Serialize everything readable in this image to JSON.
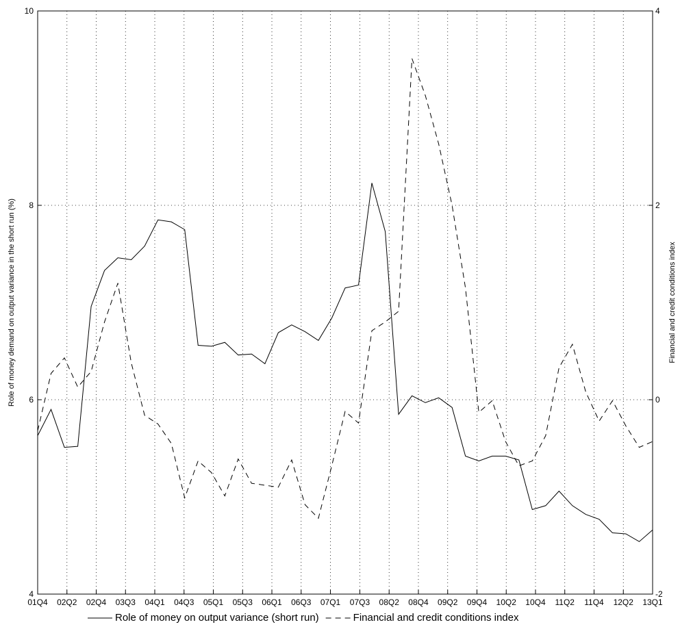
{
  "chart_data": {
    "type": "line",
    "y_label": "Role of money demand on output variance in the short run (%)",
    "y2_label": "Financial and credit conditions index",
    "x": [
      0,
      1,
      2,
      3,
      4,
      5,
      6,
      7,
      8,
      9,
      10,
      11,
      12,
      13,
      14,
      15,
      16,
      17,
      18,
      19,
      20,
      21,
      22,
      23,
      24,
      25,
      26,
      27,
      28,
      29,
      30,
      31,
      32,
      33,
      34,
      35,
      36,
      37,
      38,
      39,
      40,
      41,
      42,
      43,
      44,
      45,
      46
    ],
    "xlim": [
      0,
      46
    ],
    "xticks": [
      {
        "value": 0,
        "label": "01Q4"
      },
      {
        "value": 2.19,
        "label": "02Q2"
      },
      {
        "value": 4.38,
        "label": "02Q4"
      },
      {
        "value": 6.57,
        "label": "03Q3"
      },
      {
        "value": 8.76,
        "label": "04Q1"
      },
      {
        "value": 10.95,
        "label": "04Q3"
      },
      {
        "value": 13.14,
        "label": "05Q1"
      },
      {
        "value": 15.33,
        "label": "05Q3"
      },
      {
        "value": 17.52,
        "label": "06Q1"
      },
      {
        "value": 19.71,
        "label": "06Q3"
      },
      {
        "value": 21.9,
        "label": "07Q1"
      },
      {
        "value": 24.1,
        "label": "07Q3"
      },
      {
        "value": 26.29,
        "label": "08Q2"
      },
      {
        "value": 28.48,
        "label": "08Q4"
      },
      {
        "value": 30.67,
        "label": "09Q2"
      },
      {
        "value": 32.86,
        "label": "09Q4"
      },
      {
        "value": 35.05,
        "label": "10Q2"
      },
      {
        "value": 37.24,
        "label": "10Q4"
      },
      {
        "value": 39.43,
        "label": "11Q2"
      },
      {
        "value": 41.62,
        "label": "11Q4"
      },
      {
        "value": 43.81,
        "label": "12Q2"
      },
      {
        "value": 46,
        "label": "13Q1"
      }
    ],
    "ylim": [
      4,
      10
    ],
    "yticks": [
      4,
      6,
      8,
      10
    ],
    "y2lim": [
      -2,
      4
    ],
    "y2ticks": [
      -2,
      0,
      2,
      4
    ],
    "grid": true,
    "legend": "bottom",
    "series": [
      {
        "name": "Role of money on output variance (short run)",
        "color": "#000000",
        "dash": false,
        "values": [
          5.63,
          5.9,
          5.51,
          5.52,
          6.96,
          7.33,
          7.46,
          7.44,
          7.58,
          7.85,
          7.83,
          7.75,
          6.56,
          6.55,
          6.59,
          6.46,
          6.47,
          6.37,
          6.69,
          6.77,
          6.7,
          6.61,
          6.84,
          7.15,
          7.18,
          8.23,
          7.73,
          5.85,
          6.04,
          5.97,
          6.02,
          5.92,
          5.42,
          5.37,
          5.42,
          5.42,
          5.38,
          4.87,
          4.91,
          5.06,
          4.91,
          4.82,
          4.77,
          4.63,
          4.62,
          4.54,
          4.66
        ]
      },
      {
        "name": "Financial and credit conditions index",
        "color": "#000000",
        "dash": true,
        "axis": "y2",
        "values": [
          -0.32,
          0.27,
          0.43,
          0.13,
          0.29,
          0.8,
          1.2,
          0.38,
          -0.16,
          -0.25,
          -0.45,
          -1.01,
          -0.63,
          -0.75,
          -0.99,
          -0.61,
          -0.86,
          -0.88,
          -0.9,
          -0.62,
          -1.08,
          -1.22,
          -0.68,
          -0.12,
          -0.24,
          0.71,
          0.8,
          0.91,
          3.51,
          3.13,
          2.63,
          2.0,
          1.15,
          -0.13,
          -0.01,
          -0.43,
          -0.68,
          -0.63,
          -0.37,
          0.33,
          0.57,
          0.08,
          -0.22,
          -0.01,
          -0.27,
          -0.49,
          -0.43
        ]
      }
    ]
  }
}
